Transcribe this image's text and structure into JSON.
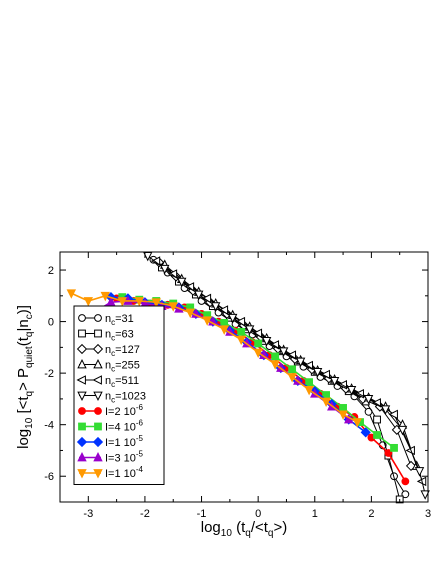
{
  "chart_data": {
    "type": "line",
    "xlabel": {
      "base": "log",
      "sub": "10",
      "rest": " (t",
      "sub2": "q",
      "rest2": "/<t",
      "sub3": "q",
      "rest3": ">)"
    },
    "ylabel": {
      "base": "log",
      "sub": "10",
      "rest": " [<t",
      "sub2": "q",
      "rest2": "> P",
      "sub3": "quiet",
      "rest3": "(t",
      "sub4": "q",
      "rest4": "|n",
      "sub5": "c",
      "rest5": ")]"
    },
    "xlim": [
      -3.5,
      3
    ],
    "ylim": [
      -7,
      2.7
    ],
    "xticks": [
      -3,
      -2,
      -1,
      0,
      1,
      2,
      3
    ],
    "yticks": [
      -6,
      -4,
      -2,
      0,
      2
    ],
    "grid": false,
    "legend_position": "lower-left",
    "series": [
      {
        "name": "n_c=31",
        "label_main": "n",
        "label_sub": "c",
        "label_tail": "=31",
        "color": "#000000",
        "marker": "circle",
        "x": [
          -1.85,
          -1.6,
          -1.3,
          -1.0,
          -0.7,
          -0.4,
          -0.1,
          0.2,
          0.5,
          0.8,
          1.1,
          1.4,
          1.7,
          1.95,
          2.2,
          2.4,
          2.6
        ],
        "y": [
          2.4,
          1.9,
          1.3,
          0.8,
          0.35,
          -0.1,
          -0.5,
          -0.95,
          -1.35,
          -1.75,
          -2.15,
          -2.5,
          -2.9,
          -3.5,
          -4.8,
          -6.0,
          -6.7
        ]
      },
      {
        "name": "n_c=63",
        "label_main": "n",
        "label_sub": "c",
        "label_tail": "=63",
        "color": "#000000",
        "marker": "square",
        "x": [
          -1.7,
          -1.4,
          -1.1,
          -0.8,
          -0.5,
          -0.2,
          0.1,
          0.4,
          0.7,
          1.0,
          1.3,
          1.6,
          1.9,
          2.1,
          2.3,
          2.5
        ],
        "y": [
          2.1,
          1.55,
          1.05,
          0.6,
          0.15,
          -0.3,
          -0.75,
          -1.15,
          -1.55,
          -1.95,
          -2.3,
          -2.7,
          -3.1,
          -3.8,
          -5.2,
          -6.9
        ]
      },
      {
        "name": "n_c=127",
        "label_main": "n",
        "label_sub": "c",
        "label_tail": "=127",
        "color": "#000000",
        "marker": "diamond",
        "x": [
          -1.75,
          -1.45,
          -1.15,
          -0.85,
          -0.55,
          -0.25,
          0.05,
          0.35,
          0.65,
          0.95,
          1.25,
          1.55,
          1.85,
          2.15,
          2.45,
          2.7
        ],
        "y": [
          2.3,
          1.75,
          1.2,
          0.75,
          0.3,
          -0.15,
          -0.6,
          -1.05,
          -1.45,
          -1.85,
          -2.2,
          -2.6,
          -3.0,
          -3.3,
          -4.2,
          -5.6
        ]
      },
      {
        "name": "n_c=255",
        "label_main": "n",
        "label_sub": "c",
        "label_tail": "=255",
        "color": "#000000",
        "marker": "triangle-up",
        "x": [
          -1.65,
          -1.35,
          -1.05,
          -0.75,
          -0.45,
          -0.15,
          0.15,
          0.45,
          0.75,
          1.05,
          1.35,
          1.65,
          1.95,
          2.25,
          2.55,
          2.8
        ],
        "y": [
          2.2,
          1.65,
          1.15,
          0.7,
          0.25,
          -0.2,
          -0.65,
          -1.1,
          -1.5,
          -1.9,
          -2.25,
          -2.6,
          -2.95,
          -3.3,
          -4.0,
          -5.6
        ]
      },
      {
        "name": "n_c=511",
        "label_main": "n",
        "label_sub": "c",
        "label_tail": "=511",
        "color": "#000000",
        "marker": "triangle-left",
        "x": [
          -1.8,
          -1.5,
          -1.2,
          -0.9,
          -0.6,
          -0.3,
          0.0,
          0.3,
          0.6,
          0.9,
          1.2,
          1.5,
          1.8,
          2.1,
          2.4,
          2.7,
          2.9
        ],
        "y": [
          2.35,
          1.85,
          1.35,
          0.9,
          0.45,
          0.0,
          -0.45,
          -0.9,
          -1.3,
          -1.7,
          -2.05,
          -2.45,
          -2.8,
          -3.15,
          -3.6,
          -5.0,
          -6.2
        ]
      },
      {
        "name": "n_c=1023",
        "label_main": "n",
        "label_sub": "c",
        "label_tail": "=1023",
        "color": "#000000",
        "marker": "triangle-down",
        "x": [
          -1.95,
          -1.65,
          -1.35,
          -1.05,
          -0.75,
          -0.45,
          -0.15,
          0.15,
          0.45,
          0.75,
          1.05,
          1.35,
          1.65,
          1.95,
          2.25,
          2.55,
          2.85,
          2.95
        ],
        "y": [
          2.55,
          2.05,
          1.55,
          1.05,
          0.6,
          0.15,
          -0.3,
          -0.75,
          -1.15,
          -1.55,
          -1.95,
          -2.3,
          -2.65,
          -3.0,
          -3.4,
          -4.2,
          -5.8,
          -6.7
        ]
      },
      {
        "name": "I=2 10^-6",
        "label_main": "I=2 10",
        "label_sup": "-6",
        "color": "#ff0000",
        "marker": "circle-filled",
        "x": [
          -2.5,
          -2.2,
          -1.9,
          -1.6,
          -1.3,
          -1.0,
          -0.7,
          -0.4,
          -0.1,
          0.2,
          0.5,
          0.8,
          1.1,
          1.4,
          1.7,
          2.0,
          2.3,
          2.6
        ],
        "y": [
          0.9,
          0.8,
          0.7,
          0.65,
          0.55,
          0.3,
          0.0,
          -0.35,
          -0.8,
          -1.3,
          -1.8,
          -2.3,
          -2.8,
          -3.3,
          -3.7,
          -4.5,
          -5.1,
          -6.2
        ]
      },
      {
        "name": "I=4 10^-6",
        "label_main": "I=4 10",
        "label_sup": "-6",
        "color": "#33dd33",
        "marker": "square-filled",
        "x": [
          -2.4,
          -2.1,
          -1.8,
          -1.5,
          -1.2,
          -0.9,
          -0.6,
          -0.3,
          0.0,
          0.3,
          0.6,
          0.9,
          1.2,
          1.5,
          1.8,
          2.1,
          2.4
        ],
        "y": [
          0.95,
          0.85,
          0.8,
          0.7,
          0.55,
          0.25,
          -0.05,
          -0.4,
          -0.85,
          -1.35,
          -1.85,
          -2.35,
          -2.85,
          -3.35,
          -3.9,
          -4.4,
          -4.9
        ]
      },
      {
        "name": "I=1 10^-5",
        "label_main": "I=1 10",
        "label_sup": "-5",
        "color": "#0033ff",
        "marker": "diamond-filled",
        "x": [
          -2.6,
          -2.3,
          -2.0,
          -1.7,
          -1.4,
          -1.1,
          -0.8,
          -0.5,
          -0.2,
          0.1,
          0.4,
          0.7,
          1.0,
          1.3,
          1.6,
          1.9
        ],
        "y": [
          0.95,
          0.9,
          0.75,
          0.65,
          0.55,
          0.3,
          0.0,
          -0.35,
          -0.8,
          -1.3,
          -1.8,
          -2.3,
          -2.7,
          -3.2,
          -3.8,
          -4.3
        ]
      },
      {
        "name": "I=3 10^-5",
        "label_main": "I=3 10",
        "label_sup": "-5",
        "color": "#9900cc",
        "marker": "triangle-up-filled",
        "x": [
          -2.95,
          -2.6,
          -2.3,
          -2.0,
          -1.7,
          -1.4,
          -1.1,
          -0.8,
          -0.5,
          -0.2,
          0.1,
          0.4,
          0.7,
          1.0,
          1.3,
          1.6
        ],
        "y": [
          0.3,
          0.75,
          0.8,
          0.7,
          0.6,
          0.5,
          0.3,
          0.0,
          -0.4,
          -0.85,
          -1.3,
          -1.8,
          -2.3,
          -2.8,
          -3.3,
          -3.8
        ]
      },
      {
        "name": "I=1 10^-4",
        "label_main": "I=1 10",
        "label_sup": "-4",
        "color": "#ff9900",
        "marker": "triangle-down-filled",
        "x": [
          -3.3,
          -3.0,
          -2.7,
          -2.4,
          -2.1,
          -1.8,
          -1.5,
          -1.2,
          -0.9,
          -0.6,
          -0.3,
          0.0,
          0.3,
          0.6,
          0.9,
          1.2,
          1.5,
          1.75
        ],
        "y": [
          1.1,
          0.8,
          1.0,
          0.8,
          0.8,
          0.75,
          0.6,
          0.35,
          0.05,
          -0.3,
          -0.7,
          -1.2,
          -1.65,
          -2.15,
          -2.65,
          -3.1,
          -3.6,
          -3.9
        ]
      }
    ]
  }
}
